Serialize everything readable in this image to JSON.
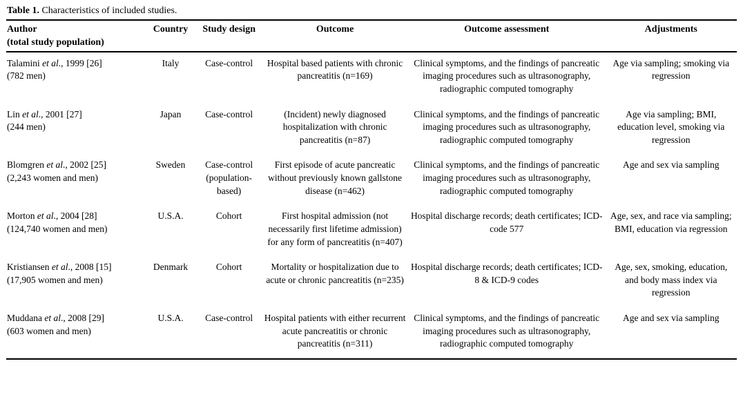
{
  "title": {
    "label": "Table 1.",
    "text": " Characteristics of included studies."
  },
  "table": {
    "headers": {
      "author_line1": "Author",
      "author_line2": "(total study population)",
      "country": "Country",
      "study_design": "Study design",
      "outcome": "Outcome",
      "outcome_assessment": "Outcome assessment",
      "adjustments": "Adjustments"
    },
    "rows": [
      {
        "author": {
          "name": "Talamini ",
          "etal": "et al",
          "rest": "., 1999 [26]",
          "population": "(782 men)"
        },
        "country": "Italy",
        "study_design": "Case-control",
        "outcome": "Hospital based patients with chronic pancreatitis (n=169)",
        "outcome_assessment": "Clinical symptoms, and the findings of pancreatic imaging procedures such as ultrasonography, radiographic computed tomography",
        "adjustments": "Age via sampling; smoking via regression"
      },
      {
        "author": {
          "name": "Lin ",
          "etal": "et al",
          "rest": "., 2001 [27]",
          "population": "(244 men)"
        },
        "country": "Japan",
        "study_design": "Case-control",
        "outcome": "(Incident) newly diagnosed hospitalization with chronic pancreatitis (n=87)",
        "outcome_assessment": "Clinical symptoms, and the findings of pancreatic imaging procedures such as ultrasonography, radiographic computed tomography",
        "adjustments": "Age via sampling; BMI, education level, smoking via regression"
      },
      {
        "author": {
          "name": "Blomgren ",
          "etal": "et al",
          "rest": "., 2002 [25]",
          "population": "(2,243 women and men)"
        },
        "country": "Sweden",
        "study_design": "Case-control (population-based)",
        "outcome": "First episode of acute pancreatic without previously known gallstone disease (n=462)",
        "outcome_assessment": "Clinical symptoms, and the findings of pancreatic imaging procedures such as ultrasonography, radiographic computed tomography",
        "adjustments": "Age and sex via sampling"
      },
      {
        "author": {
          "name": "Morton ",
          "etal": "et al",
          "rest": "., 2004 [28]",
          "population": "(124,740 women and men)"
        },
        "country": "U.S.A.",
        "study_design": "Cohort",
        "outcome": "First hospital admission (not necessarily first lifetime admission) for any form of pancreatitis (n=407)",
        "outcome_assessment": "Hospital discharge records; death certificates; ICD-code 577",
        "adjustments": "Age, sex, and race via sampling; BMI, education via regression"
      },
      {
        "author": {
          "name": "Kristiansen ",
          "etal": "et al",
          "rest": "., 2008 [15]",
          "population": "(17,905 women and men)"
        },
        "country": "Denmark",
        "study_design": "Cohort",
        "outcome": "Mortality or hospitalization due to acute or chronic pancreatitis (n=235)",
        "outcome_assessment": "Hospital discharge records; death certificates; ICD-8 & ICD-9 codes",
        "adjustments": "Age, sex, smoking, education, and body mass index via regression"
      },
      {
        "author": {
          "name": "Muddana ",
          "etal": "et al",
          "rest": "., 2008 [29]",
          "population": "(603 women and men)"
        },
        "country": "U.S.A.",
        "study_design": "Case-control",
        "outcome": "Hospital patients with either recurrent acute pancreatitis or chronic pancreatitis (n=311)",
        "outcome_assessment": "Clinical symptoms, and the findings of pancreatic imaging procedures such as ultrasonography, radiographic computed tomography",
        "adjustments": "Age and sex via sampling"
      }
    ]
  }
}
